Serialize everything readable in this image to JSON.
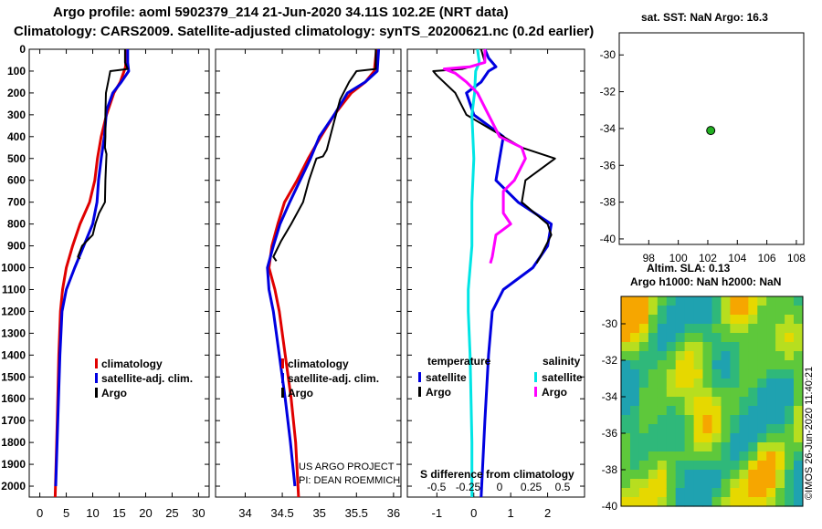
{
  "title_line1": "Argo profile: aoml 5902379_214 21-Jun-2020 34.11S 102.2E (NRT data)",
  "title_line2": "Climatology: CARS2009. Satellite-adjusted climatology: synTS_20200621.nc (0.2d earlier)",
  "depth_axis": {
    "min": 0,
    "max": 2050,
    "ticks": [
      0,
      100,
      200,
      300,
      400,
      500,
      600,
      700,
      800,
      900,
      1000,
      1100,
      1200,
      1300,
      1400,
      1500,
      1600,
      1700,
      1800,
      1900,
      2000
    ]
  },
  "colors": {
    "climatology": "#e00000",
    "satellite": "#0000e0",
    "argo": "#000000",
    "sat_salinity": "#00e5e5",
    "argo_salinity": "#ff00ff"
  },
  "chart_data": [
    {
      "type": "line",
      "name": "temperature-profile",
      "xlim": [
        -2,
        32
      ],
      "xticks": [
        0,
        5,
        10,
        15,
        20,
        25,
        30
      ],
      "ylim": [
        2050,
        0
      ],
      "legend": [
        "climatology",
        "satellite-adj. clim.",
        "Argo"
      ],
      "series": [
        {
          "name": "climatology",
          "key": "climatology",
          "points": [
            [
              16.3,
              0
            ],
            [
              16.2,
              80
            ],
            [
              15.2,
              150
            ],
            [
              14,
              200
            ],
            [
              12.6,
              300
            ],
            [
              11.6,
              400
            ],
            [
              10.9,
              500
            ],
            [
              10.4,
              600
            ],
            [
              9.4,
              700
            ],
            [
              7.6,
              800
            ],
            [
              6.2,
              900
            ],
            [
              5,
              1000
            ],
            [
              4.3,
              1100
            ],
            [
              3.9,
              1200
            ],
            [
              3.6,
              1400
            ],
            [
              3.3,
              1700
            ],
            [
              2.9,
              2050
            ]
          ]
        },
        {
          "name": "satellite-adj. clim.",
          "key": "satellite",
          "points": [
            [
              16.6,
              0
            ],
            [
              16.6,
              60
            ],
            [
              16.8,
              100
            ],
            [
              15.4,
              150
            ],
            [
              13.8,
              200
            ],
            [
              12.6,
              280
            ],
            [
              12.2,
              400
            ],
            [
              11.6,
              500
            ],
            [
              11.1,
              600
            ],
            [
              10.8,
              700
            ],
            [
              10,
              800
            ],
            [
              8.3,
              900
            ],
            [
              6.6,
              1000
            ],
            [
              5,
              1100
            ],
            [
              4.2,
              1200
            ],
            [
              3.8,
              1400
            ],
            [
              3.4,
              1700
            ],
            [
              3,
              2000
            ]
          ]
        },
        {
          "name": "Argo",
          "key": "argo",
          "points": [
            [
              16.1,
              0
            ],
            [
              16.1,
              60
            ],
            [
              16.6,
              90
            ],
            [
              13.3,
              100
            ],
            [
              13,
              140
            ],
            [
              12.5,
              200
            ],
            [
              12.4,
              300
            ],
            [
              12.4,
              400
            ],
            [
              12.3,
              450
            ],
            [
              12.6,
              480
            ],
            [
              12.4,
              600
            ],
            [
              12.3,
              700
            ],
            [
              11.2,
              750
            ],
            [
              10.5,
              800
            ],
            [
              10,
              850
            ],
            [
              8,
              900
            ],
            [
              7.2,
              950
            ],
            [
              7.6,
              960
            ]
          ]
        }
      ]
    },
    {
      "type": "line",
      "name": "salinity-profile",
      "xlim": [
        33.6,
        36.1
      ],
      "xticks": [
        34,
        34.5,
        35,
        35.5,
        36
      ],
      "ylim": [
        2050,
        0
      ],
      "legend": [
        "climatology",
        "satellite-adj. clim.",
        "Argo"
      ],
      "series": [
        {
          "name": "climatology",
          "key": "climatology",
          "points": [
            [
              35.77,
              0
            ],
            [
              35.74,
              100
            ],
            [
              35.62,
              150
            ],
            [
              35.43,
              200
            ],
            [
              35.2,
              300
            ],
            [
              35.02,
              400
            ],
            [
              34.85,
              500
            ],
            [
              34.7,
              600
            ],
            [
              34.53,
              700
            ],
            [
              34.44,
              800
            ],
            [
              34.36,
              900
            ],
            [
              34.32,
              1000
            ],
            [
              34.4,
              1100
            ],
            [
              34.46,
              1200
            ],
            [
              34.54,
              1400
            ],
            [
              34.62,
              1600
            ],
            [
              34.68,
              1800
            ],
            [
              34.72,
              2050
            ]
          ]
        },
        {
          "name": "satellite-adj. clim.",
          "key": "satellite",
          "points": [
            [
              35.8,
              0
            ],
            [
              35.78,
              100
            ],
            [
              35.62,
              150
            ],
            [
              35.38,
              200
            ],
            [
              35.2,
              300
            ],
            [
              35.0,
              400
            ],
            [
              34.88,
              500
            ],
            [
              34.74,
              600
            ],
            [
              34.6,
              700
            ],
            [
              34.47,
              800
            ],
            [
              34.38,
              900
            ],
            [
              34.3,
              1000
            ],
            [
              34.32,
              1100
            ],
            [
              34.38,
              1200
            ],
            [
              34.46,
              1400
            ],
            [
              34.54,
              1600
            ],
            [
              34.61,
              1800
            ],
            [
              34.67,
              2000
            ]
          ]
        },
        {
          "name": "Argo",
          "key": "argo",
          "points": [
            [
              35.76,
              0
            ],
            [
              35.76,
              90
            ],
            [
              35.5,
              100
            ],
            [
              35.4,
              150
            ],
            [
              35.28,
              230
            ],
            [
              35.2,
              330
            ],
            [
              35.1,
              460
            ],
            [
              35.05,
              490
            ],
            [
              34.96,
              500
            ],
            [
              34.86,
              600
            ],
            [
              34.78,
              700
            ],
            [
              34.62,
              800
            ],
            [
              34.48,
              880
            ],
            [
              34.38,
              950
            ],
            [
              34.42,
              970
            ]
          ]
        }
      ]
    },
    {
      "type": "line",
      "name": "difference-from-climatology",
      "xlim": [
        -1.8,
        3.0
      ],
      "xticks": [
        -1,
        0,
        1,
        2
      ],
      "ylim": [
        2050,
        0
      ],
      "xlabel": "S difference from climatology",
      "legend_groups": [
        {
          "heading": "temperature",
          "entries": [
            "satellite",
            "Argo"
          ]
        },
        {
          "heading": "salinity",
          "entries": [
            "satellite",
            "Argo"
          ]
        }
      ],
      "s_ticks": [
        -0.5,
        -0.25,
        0,
        0.25,
        0.5
      ],
      "series": [
        {
          "name": "temperature satellite",
          "key": "satellite",
          "points": [
            [
              0.3,
              0
            ],
            [
              0.4,
              40
            ],
            [
              0.6,
              80
            ],
            [
              0.4,
              100
            ],
            [
              0.2,
              150
            ],
            [
              -0.2,
              200
            ],
            [
              0,
              300
            ],
            [
              0.8,
              400
            ],
            [
              0.7,
              500
            ],
            [
              0.6,
              600
            ],
            [
              1.2,
              700
            ],
            [
              2.1,
              800
            ],
            [
              2,
              900
            ],
            [
              1.6,
              1000
            ],
            [
              0.8,
              1100
            ],
            [
              0.5,
              1200
            ],
            [
              0.4,
              1400
            ],
            [
              0.3,
              1700
            ],
            [
              0.2,
              2050
            ]
          ]
        },
        {
          "name": "temperature Argo",
          "key": "argo",
          "points": [
            [
              0.2,
              0
            ],
            [
              0.3,
              60
            ],
            [
              -0.3,
              90
            ],
            [
              -1.1,
              100
            ],
            [
              -1,
              120
            ],
            [
              -0.5,
              200
            ],
            [
              -0.2,
              300
            ],
            [
              0.8,
              400
            ],
            [
              1.3,
              450
            ],
            [
              2.2,
              500
            ],
            [
              1.4,
              600
            ],
            [
              1.3,
              700
            ],
            [
              2,
              800
            ],
            [
              2.1,
              850
            ],
            [
              1.8,
              950
            ],
            [
              1.7,
              980
            ]
          ]
        },
        {
          "name": "salinity satellite",
          "key": "sat_salinity",
          "points": [
            [
              0.1,
              0
            ],
            [
              0.15,
              60
            ],
            [
              0.05,
              100
            ],
            [
              0.02,
              200
            ],
            [
              -0.05,
              300
            ],
            [
              0,
              500
            ],
            [
              -0.05,
              700
            ],
            [
              -0.05,
              900
            ],
            [
              -0.1,
              1000
            ],
            [
              -0.15,
              1100
            ],
            [
              -0.15,
              1200
            ],
            [
              -0.1,
              1400
            ],
            [
              -0.05,
              1800
            ],
            [
              -0.05,
              2050
            ]
          ]
        },
        {
          "name": "salinity Argo",
          "key": "argo_salinity",
          "points": [
            [
              0.3,
              0
            ],
            [
              0.3,
              60
            ],
            [
              -0.1,
              80
            ],
            [
              -0.8,
              90
            ],
            [
              -0.5,
              110
            ],
            [
              -0.2,
              150
            ],
            [
              0.1,
              200
            ],
            [
              0.4,
              300
            ],
            [
              0.7,
              400
            ],
            [
              1.3,
              450
            ],
            [
              1.4,
              500
            ],
            [
              1.1,
              600
            ],
            [
              0.8,
              650
            ],
            [
              0.8,
              750
            ],
            [
              1,
              800
            ],
            [
              0.6,
              850
            ],
            [
              0.5,
              950
            ],
            [
              0.45,
              980
            ]
          ]
        }
      ]
    },
    {
      "type": "scatter",
      "name": "location-map",
      "title": "sat. SST: NaN Argo: 16.3",
      "xlim": [
        96,
        108.5
      ],
      "xticks": [
        98,
        100,
        102,
        104,
        106,
        108
      ],
      "ylim": [
        -40.3,
        -28.8
      ],
      "yticks": [
        -30,
        -32,
        -34,
        -36,
        -38,
        -40
      ],
      "points": [
        {
          "x": 102.2,
          "y": -34.11
        }
      ]
    },
    {
      "type": "heatmap",
      "name": "sla-map",
      "title1": "Altim. SLA: 0.13",
      "title2": "Argo h1000: NaN h2000: NaN",
      "ylim": [
        -40,
        -28.5
      ],
      "yticks": [
        -30,
        -32,
        -34,
        -36,
        -38,
        -40
      ]
    }
  ],
  "credits": {
    "project": "US ARGO PROJECT",
    "pi": "PI: DEAN ROEMMICH",
    "watermark": "©IMOS 26-Jun-2020 11:40:21"
  }
}
